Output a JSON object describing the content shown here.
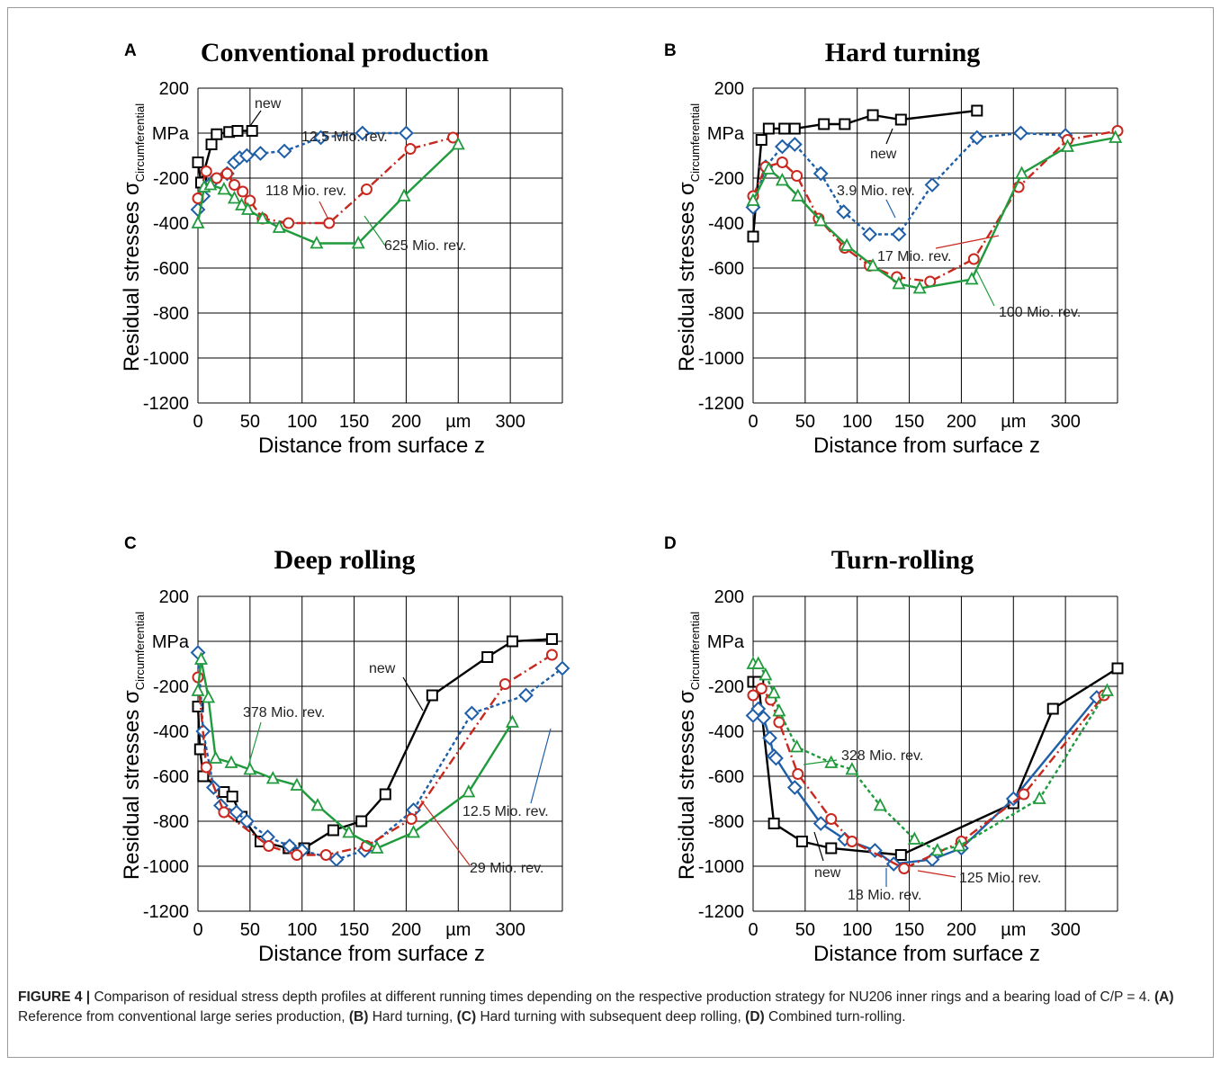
{
  "colors": {
    "black": "#000000",
    "blue": "#1f5fa8",
    "red": "#c8281e",
    "green": "#1f9a3c"
  },
  "caption": {
    "prefix": "FIGURE 4 |",
    "text": " Comparison of residual stress depth profiles at different running times depending on the respective production strategy for NU206 inner rings and a bearing load of C/P = 4. ",
    "parts": [
      {
        "label": "(A)",
        "text": " Reference from conventional large series production, "
      },
      {
        "label": "(B)",
        "text": " Hard turning, "
      },
      {
        "label": "(C)",
        "text": " Hard turning with subsequent deep rolling, "
      },
      {
        "label": "(D)",
        "text": " Combined turn-rolling."
      }
    ]
  },
  "chart_data": [
    {
      "panel": "A",
      "type": "line",
      "title": "Conventional production",
      "xlabel": "Distance from surface z",
      "ylabel": "Residual stresses σ",
      "ylabel_sub": "Circumferential",
      "x_unit": "µm",
      "y_unit": "MPa",
      "xlim": [
        0,
        350
      ],
      "ylim": [
        -1200,
        200
      ],
      "xticks": [
        "0",
        "50",
        "100",
        "150",
        "200",
        "µm",
        "300"
      ],
      "yticks": [
        "200",
        "MPa",
        "-200",
        "-400",
        "-600",
        "-800",
        "-1000",
        "-1200"
      ],
      "grid": true,
      "series": [
        {
          "name": "new",
          "color": "black",
          "dash": "solid",
          "marker": "square",
          "x": [
            0,
            3,
            13,
            18,
            30,
            38,
            52
          ],
          "y": [
            -130,
            -220,
            -50,
            -5,
            5,
            10,
            10
          ]
        },
        {
          "name": "12.5 Mio. rev.",
          "color": "blue",
          "dash": "dotted",
          "marker": "diamond",
          "x": [
            0,
            5,
            13,
            28,
            35,
            40,
            47,
            60,
            83,
            118,
            158,
            200
          ],
          "y": [
            -340,
            -280,
            -220,
            -180,
            -130,
            -110,
            -100,
            -90,
            -80,
            -20,
            0,
            0
          ]
        },
        {
          "name": "118 Mio. rev.",
          "color": "red",
          "dash": "dashdot",
          "marker": "circle",
          "x": [
            0,
            8,
            18,
            28,
            35,
            43,
            50,
            62,
            87,
            126,
            162,
            204,
            245
          ],
          "y": [
            -290,
            -170,
            -200,
            -180,
            -230,
            -260,
            -300,
            -380,
            -400,
            -400,
            -250,
            -70,
            -20
          ]
        },
        {
          "name": "625 Mio. rev.",
          "color": "green",
          "dash": "solid",
          "marker": "triangle",
          "x": [
            0,
            6,
            12,
            25,
            35,
            42,
            48,
            62,
            78,
            114,
            154,
            198,
            250
          ],
          "y": [
            -400,
            -240,
            -230,
            -250,
            -290,
            -320,
            -340,
            -380,
            -420,
            -490,
            -490,
            -280,
            -50
          ]
        }
      ],
      "annotations": [
        "new",
        "12.5 Mio. rev.",
        "118 Mio. rev.",
        "625 Mio. rev."
      ]
    },
    {
      "panel": "B",
      "type": "line",
      "title": "Hard turning",
      "xlabel": "Distance from surface z",
      "ylabel": "Residual stresses σ",
      "ylabel_sub": "Circumferential",
      "x_unit": "µm",
      "y_unit": "MPa",
      "xlim": [
        0,
        350
      ],
      "ylim": [
        -1200,
        200
      ],
      "xticks": [
        "0",
        "50",
        "100",
        "150",
        "200",
        "µm",
        "300"
      ],
      "yticks": [
        "200",
        "MPa",
        "-200",
        "-400",
        "-600",
        "-800",
        "-1000",
        "-1200"
      ],
      "grid": true,
      "series": [
        {
          "name": "new",
          "color": "black",
          "dash": "solid",
          "marker": "square",
          "x": [
            0,
            8,
            15,
            30,
            40,
            68,
            88,
            115,
            142,
            215
          ],
          "y": [
            -460,
            -30,
            20,
            20,
            20,
            40,
            40,
            80,
            60,
            100
          ]
        },
        {
          "name": "3.9 Mio. rev.",
          "color": "blue",
          "dash": "dotted",
          "marker": "diamond",
          "x": [
            0,
            12,
            28,
            40,
            65,
            87,
            112,
            140,
            172,
            215,
            257,
            300
          ],
          "y": [
            -330,
            -150,
            -60,
            -50,
            -180,
            -350,
            -450,
            -450,
            -230,
            -20,
            0,
            -10
          ]
        },
        {
          "name": "17 Mio. rev.",
          "color": "red",
          "dash": "dashdot",
          "marker": "circle",
          "x": [
            0,
            12,
            28,
            42,
            63,
            88,
            112,
            138,
            170,
            212,
            255,
            302,
            350
          ],
          "y": [
            -280,
            -150,
            -130,
            -190,
            -380,
            -510,
            -590,
            -640,
            -660,
            -560,
            -240,
            -30,
            10
          ]
        },
        {
          "name": "100 Mio. rev.",
          "color": "green",
          "dash": "solid",
          "marker": "triangle",
          "x": [
            0,
            15,
            28,
            43,
            65,
            90,
            115,
            140,
            160,
            210,
            258,
            302,
            348
          ],
          "y": [
            -300,
            -160,
            -210,
            -280,
            -390,
            -500,
            -590,
            -670,
            -690,
            -650,
            -180,
            -60,
            -20
          ]
        }
      ],
      "annotations": [
        "new",
        "3.9 Mio. rev.",
        "17 Mio. rev.",
        "100 Mio. rev."
      ]
    },
    {
      "panel": "C",
      "type": "line",
      "title": "Deep rolling",
      "xlabel": "Distance from surface z",
      "ylabel": "Residual stresses σ",
      "ylabel_sub": "Circumferential",
      "x_unit": "µm",
      "y_unit": "MPa",
      "xlim": [
        0,
        350
      ],
      "ylim": [
        -1200,
        200
      ],
      "xticks": [
        "0",
        "50",
        "100",
        "150",
        "200",
        "µm",
        "300"
      ],
      "yticks": [
        "200",
        "MPa",
        "-200",
        "-400",
        "-600",
        "-800",
        "-1000",
        "-1200"
      ],
      "grid": true,
      "series": [
        {
          "name": "new",
          "color": "black",
          "dash": "solid",
          "marker": "square",
          "x": [
            0,
            2,
            5,
            25,
            33,
            42,
            60,
            87,
            102,
            130,
            157,
            180,
            225,
            278,
            302,
            340
          ],
          "y": [
            -290,
            -480,
            -600,
            -670,
            -690,
            -780,
            -890,
            -920,
            -920,
            -840,
            -800,
            -680,
            -240,
            -70,
            0,
            10
          ]
        },
        {
          "name": "12.5 Mio. rev.",
          "color": "blue",
          "dash": "dotted",
          "marker": "diamond",
          "x": [
            0,
            5,
            15,
            22,
            37,
            47,
            67,
            88,
            100,
            133,
            160,
            207,
            263,
            315,
            350
          ],
          "y": [
            -50,
            -400,
            -650,
            -730,
            -760,
            -800,
            -870,
            -910,
            -930,
            -970,
            -930,
            -750,
            -320,
            -240,
            -120
          ]
        },
        {
          "name": "29 Mio. rev.",
          "color": "red",
          "dash": "dashdot",
          "marker": "circle",
          "x": [
            0,
            8,
            25,
            68,
            95,
            123,
            162,
            205,
            295,
            340
          ],
          "y": [
            -160,
            -560,
            -760,
            -910,
            -950,
            -950,
            -910,
            -790,
            -190,
            -60
          ]
        },
        {
          "name": "378 Mio. rev.",
          "color": "green",
          "dash": "solid",
          "marker": "triangle",
          "x": [
            0,
            3,
            10,
            17,
            32,
            50,
            72,
            95,
            115,
            145,
            172,
            207,
            260,
            302
          ],
          "y": [
            -220,
            -80,
            -250,
            -520,
            -540,
            -570,
            -610,
            -640,
            -730,
            -850,
            -920,
            -850,
            -670,
            -360
          ]
        }
      ],
      "annotations": [
        "new",
        "378 Mio. rev.",
        "12.5 Mio. rev.",
        "29 Mio. rev."
      ]
    },
    {
      "panel": "D",
      "type": "line",
      "title": "Turn-rolling",
      "xlabel": "Distance from surface z",
      "ylabel": "Residual stresses σ",
      "ylabel_sub": "Circumferential",
      "x_unit": "µm",
      "y_unit": "MPa",
      "xlim": [
        0,
        350
      ],
      "ylim": [
        -1200,
        200
      ],
      "xticks": [
        "0",
        "50",
        "100",
        "150",
        "200",
        "µm",
        "300"
      ],
      "yticks": [
        "200",
        "MPa",
        "-200",
        "-400",
        "-600",
        "-800",
        "-1000",
        "-1200"
      ],
      "grid": true,
      "series": [
        {
          "name": "new",
          "color": "black",
          "dash": "solid",
          "marker": "square",
          "x": [
            0,
            5,
            20,
            47,
            75,
            142,
            250,
            288,
            350
          ],
          "y": [
            -180,
            -180,
            -810,
            -890,
            -920,
            -950,
            -720,
            -300,
            -120
          ]
        },
        {
          "name": "18 Mio. rev.",
          "color": "blue",
          "dash": "solid",
          "marker": "diamond",
          "x": [
            0,
            5,
            10,
            16,
            20,
            22,
            40,
            65,
            88,
            117,
            135,
            172,
            200,
            250,
            330
          ],
          "y": [
            -330,
            -300,
            -340,
            -430,
            -510,
            -520,
            -650,
            -810,
            -880,
            -930,
            -990,
            -970,
            -920,
            -700,
            -250
          ]
        },
        {
          "name": "125 Mio. rev.",
          "color": "red",
          "dash": "dashdot",
          "marker": "circle",
          "x": [
            0,
            8,
            17,
            25,
            43,
            75,
            95,
            145,
            200,
            260,
            337
          ],
          "y": [
            -240,
            -210,
            -260,
            -360,
            -590,
            -790,
            -890,
            -1010,
            -890,
            -680,
            -240
          ]
        },
        {
          "name": "328 Mio. rev.",
          "color": "green",
          "dash": "dotted",
          "marker": "triangle",
          "x": [
            0,
            5,
            12,
            20,
            25,
            42,
            75,
            95,
            122,
            155,
            177,
            198,
            275,
            340
          ],
          "y": [
            -100,
            -100,
            -150,
            -230,
            -310,
            -470,
            -540,
            -570,
            -730,
            -880,
            -930,
            -910,
            -700,
            -220
          ]
        }
      ],
      "annotations": [
        "new",
        "18 Mio. rev.",
        "125 Mio. rev.",
        "328 Mio. rev."
      ]
    }
  ]
}
